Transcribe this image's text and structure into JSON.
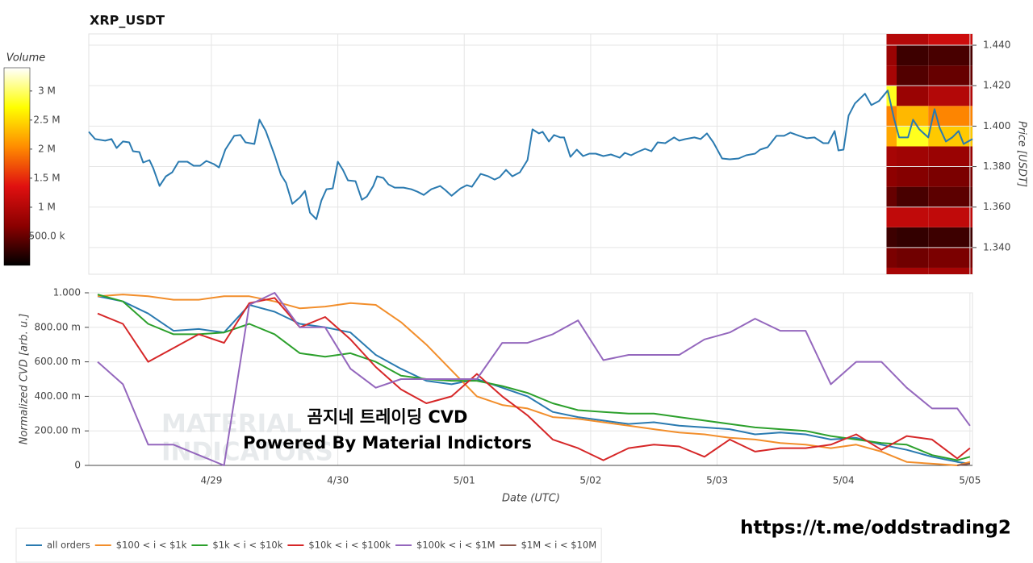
{
  "chart_data": [
    {
      "type": "line",
      "title": "XRP_USDT",
      "ylabel": "Price [USDT]",
      "color": "#2a7ab0",
      "xlim": [
        0.03,
        7.02
      ],
      "xticks": [
        1,
        2,
        3,
        4,
        5,
        6,
        7
      ],
      "ylim": [
        1.3268,
        1.4456
      ],
      "yticks": [
        {
          "value": 1.34,
          "label": "1.340"
        },
        {
          "value": 1.36,
          "label": "1.360"
        },
        {
          "value": 1.38,
          "label": "1.380"
        },
        {
          "value": 1.4,
          "label": "1.400"
        },
        {
          "value": 1.42,
          "label": "1.420"
        },
        {
          "value": 1.44,
          "label": "1.440"
        }
      ],
      "grid": true,
      "x": [
        0.03,
        0.08,
        0.16,
        0.21,
        0.25,
        0.3,
        0.35,
        0.38,
        0.43,
        0.46,
        0.51,
        0.54,
        0.59,
        0.64,
        0.69,
        0.74,
        0.81,
        0.86,
        0.91,
        0.96,
        1.02,
        1.06,
        1.11,
        1.18,
        1.23,
        1.27,
        1.34,
        1.38,
        1.43,
        1.5,
        1.55,
        1.59,
        1.64,
        1.7,
        1.74,
        1.78,
        1.83,
        1.87,
        1.91,
        1.96,
        2.0,
        2.04,
        2.08,
        2.14,
        2.19,
        2.23,
        2.28,
        2.31,
        2.36,
        2.4,
        2.45,
        2.52,
        2.58,
        2.63,
        2.68,
        2.74,
        2.81,
        2.85,
        2.9,
        2.97,
        3.02,
        3.06,
        3.13,
        3.19,
        3.24,
        3.28,
        3.33,
        3.38,
        3.44,
        3.5,
        3.54,
        3.59,
        3.62,
        3.67,
        3.71,
        3.76,
        3.79,
        3.84,
        3.89,
        3.94,
        3.99,
        4.04,
        4.1,
        4.16,
        4.23,
        4.27,
        4.32,
        4.37,
        4.43,
        4.48,
        4.53,
        4.59,
        4.66,
        4.7,
        4.75,
        4.82,
        4.87,
        4.92,
        4.97,
        5.04,
        5.1,
        5.17,
        5.23,
        5.3,
        5.34,
        5.4,
        5.47,
        5.53,
        5.58,
        5.65,
        5.71,
        5.77,
        5.84,
        5.88,
        5.93,
        5.96,
        6.0,
        6.04,
        6.09,
        6.17,
        6.22,
        6.28,
        6.35,
        6.4,
        6.44,
        6.51,
        6.55,
        6.6,
        6.67,
        6.72,
        6.76,
        6.81,
        6.86,
        6.91,
        6.95,
        7.02
      ],
      "values": [
        1.3972,
        1.3936,
        1.3928,
        1.3936,
        1.3892,
        1.3924,
        1.392,
        1.3876,
        1.3872,
        1.382,
        1.3832,
        1.3792,
        1.3704,
        1.3752,
        1.3772,
        1.3824,
        1.3824,
        1.3804,
        1.3804,
        1.3828,
        1.3812,
        1.3796,
        1.3884,
        1.3952,
        1.3956,
        1.392,
        1.3912,
        1.4032,
        1.3976,
        1.3856,
        1.376,
        1.372,
        1.3616,
        1.3648,
        1.368,
        1.3572,
        1.354,
        1.3632,
        1.3688,
        1.3692,
        1.3824,
        1.3784,
        1.3732,
        1.3728,
        1.3636,
        1.3652,
        1.3704,
        1.3752,
        1.3744,
        1.3712,
        1.3696,
        1.3696,
        1.3688,
        1.3676,
        1.366,
        1.3688,
        1.3704,
        1.3684,
        1.3656,
        1.3692,
        1.3708,
        1.37,
        1.3764,
        1.3752,
        1.3736,
        1.3748,
        1.3784,
        1.3752,
        1.3772,
        1.3832,
        1.3984,
        1.3964,
        1.3972,
        1.3924,
        1.3956,
        1.3944,
        1.3944,
        1.3848,
        1.3884,
        1.3852,
        1.3864,
        1.3864,
        1.3852,
        1.386,
        1.3844,
        1.3868,
        1.3856,
        1.3872,
        1.3888,
        1.3876,
        1.392,
        1.3916,
        1.3944,
        1.3928,
        1.3936,
        1.3944,
        1.3936,
        1.3964,
        1.392,
        1.384,
        1.3836,
        1.384,
        1.3856,
        1.3864,
        1.3884,
        1.3896,
        1.3952,
        1.3952,
        1.3968,
        1.3952,
        1.394,
        1.3944,
        1.3916,
        1.3916,
        1.3976,
        1.388,
        1.3884,
        1.4052,
        1.4112,
        1.416,
        1.4104,
        1.4124,
        1.4176,
        1.4036,
        1.3944,
        1.3944,
        1.4032,
        1.3984,
        1.3944,
        1.4084,
        1.3992,
        1.3924,
        1.3944,
        1.3976,
        1.3912,
        1.3936
      ],
      "heatmap": {
        "x_edges": [
          6.34,
          6.42,
          6.67,
          7.02
        ],
        "y_edges": [
          1.3268,
          1.33,
          1.34,
          1.35,
          1.36,
          1.37,
          1.38,
          1.39,
          1.4,
          1.41,
          1.42,
          1.43,
          1.44,
          1.4456
        ],
        "values": [
          [
            900000,
            900000,
            900000
          ],
          [
            600000,
            550000,
            600000
          ],
          [
            300000,
            250000,
            300000
          ],
          [
            1100000,
            1100000,
            1100000
          ],
          [
            500000,
            350000,
            450000
          ],
          [
            700000,
            650000,
            600000
          ],
          [
            900000,
            850000,
            800000
          ],
          [
            2200000,
            2800000,
            2400000
          ],
          [
            2000000,
            2300000,
            2000000
          ],
          [
            2800000,
            800000,
            1000000
          ],
          [
            900000,
            400000,
            500000
          ],
          [
            800000,
            300000,
            350000
          ],
          [
            1000000,
            1000000,
            1200000
          ]
        ],
        "colorscale": [
          "#000000",
          "#8b0000",
          "#e01010",
          "#ff8c00",
          "#ffff00",
          "#ffffff"
        ]
      },
      "colorbar": {
        "title": "Volume",
        "clim": [
          0,
          3400000
        ],
        "ticks": [
          {
            "value": 500000,
            "label": "500.0 k"
          },
          {
            "value": 1000000,
            "label": "1 M"
          },
          {
            "value": 1500000,
            "label": "1.5 M"
          },
          {
            "value": 2000000,
            "label": "2 M"
          },
          {
            "value": 2500000,
            "label": "2.5 M"
          },
          {
            "value": 3000000,
            "label": "3 M"
          }
        ]
      }
    },
    {
      "type": "line",
      "xlabel": "Date (UTC)",
      "ylabel": "Normalized CVD [arb. u.]",
      "xlim": [
        0.03,
        7.02
      ],
      "xticks": [
        {
          "value": 1,
          "label": "4/29"
        },
        {
          "value": 2,
          "label": "4/30"
        },
        {
          "value": 3,
          "label": "5/01"
        },
        {
          "value": 4,
          "label": "5/02"
        },
        {
          "value": 5,
          "label": "5/03"
        },
        {
          "value": 6,
          "label": "5/04"
        },
        {
          "value": 7,
          "label": "5/05"
        }
      ],
      "ylim": [
        0,
        1
      ],
      "yticks": [
        0,
        {
          "value": 0.2,
          "label": "200.00 m"
        },
        {
          "value": 0.4,
          "label": "400.00 m"
        },
        {
          "value": 0.6,
          "label": "600.00 m"
        },
        {
          "value": 0.8,
          "label": "800.00 m"
        },
        {
          "value": 1,
          "label": "1.000"
        }
      ],
      "grid": true,
      "legend": "bottom",
      "x": [
        0.1,
        0.3,
        0.5,
        0.7,
        0.9,
        1.1,
        1.3,
        1.5,
        1.7,
        1.9,
        2.1,
        2.3,
        2.5,
        2.7,
        2.9,
        3.1,
        3.3,
        3.5,
        3.7,
        3.9,
        4.1,
        4.3,
        4.5,
        4.7,
        4.9,
        5.1,
        5.3,
        5.5,
        5.7,
        5.9,
        6.1,
        6.3,
        6.5,
        6.7,
        6.9,
        7.0
      ],
      "series": [
        {
          "name": "all orders",
          "color": "#2a7ab0",
          "values": [
            0.98,
            0.95,
            0.88,
            0.78,
            0.79,
            0.77,
            0.93,
            0.89,
            0.82,
            0.8,
            0.77,
            0.64,
            0.56,
            0.49,
            0.47,
            0.5,
            0.45,
            0.4,
            0.31,
            0.28,
            0.26,
            0.24,
            0.25,
            0.23,
            0.22,
            0.21,
            0.18,
            0.19,
            0.18,
            0.15,
            0.16,
            0.12,
            0.09,
            0.05,
            0.02,
            0.01
          ]
        },
        {
          "name": "$100 < i < $1k",
          "color": "#f28e2b",
          "values": [
            0.98,
            0.99,
            0.98,
            0.96,
            0.96,
            0.98,
            0.98,
            0.95,
            0.91,
            0.92,
            0.94,
            0.93,
            0.83,
            0.7,
            0.55,
            0.4,
            0.35,
            0.33,
            0.28,
            0.27,
            0.25,
            0.23,
            0.21,
            0.19,
            0.18,
            0.16,
            0.15,
            0.13,
            0.12,
            0.1,
            0.12,
            0.08,
            0.02,
            0.01,
            0,
            0.02
          ]
        },
        {
          "name": "$1k < i < $10k",
          "color": "#2ca02c",
          "values": [
            0.99,
            0.95,
            0.82,
            0.76,
            0.76,
            0.77,
            0.82,
            0.76,
            0.65,
            0.63,
            0.65,
            0.6,
            0.52,
            0.5,
            0.49,
            0.49,
            0.46,
            0.42,
            0.36,
            0.32,
            0.31,
            0.3,
            0.3,
            0.28,
            0.26,
            0.24,
            0.22,
            0.21,
            0.2,
            0.17,
            0.15,
            0.13,
            0.12,
            0.06,
            0.03,
            0.05
          ]
        },
        {
          "name": "$10k < i < $100k",
          "color": "#d62728",
          "values": [
            0.88,
            0.82,
            0.6,
            0.68,
            0.76,
            0.71,
            0.94,
            0.97,
            0.8,
            0.86,
            0.73,
            0.57,
            0.44,
            0.36,
            0.4,
            0.53,
            0.4,
            0.29,
            0.15,
            0.1,
            0.03,
            0.1,
            0.12,
            0.11,
            0.05,
            0.15,
            0.08,
            0.1,
            0.1,
            0.12,
            0.18,
            0.09,
            0.17,
            0.15,
            0.04,
            0.1
          ]
        },
        {
          "name": "$100k < i < $1M",
          "color": "#9467bd",
          "values": [
            0.6,
            0.47,
            0.12,
            0.12,
            0.06,
            0,
            0.93,
            1.0,
            0.8,
            0.8,
            0.56,
            0.45,
            0.5,
            0.5,
            0.5,
            0.5,
            0.71,
            0.71,
            0.76,
            0.84,
            0.61,
            0.64,
            0.64,
            0.64,
            0.73,
            0.77,
            0.85,
            0.78,
            0.78,
            0.47,
            0.6,
            0.6,
            0.45,
            0.33,
            0.33,
            0.23
          ]
        },
        {
          "name": "$1M < i < $10M",
          "color": "#8c564b",
          "values": [
            null,
            null,
            null,
            null,
            null,
            null,
            null,
            null,
            null,
            null,
            null,
            null,
            null,
            null,
            null,
            null,
            null,
            null,
            null,
            null,
            null,
            null,
            null,
            null,
            null,
            null,
            null,
            null,
            null,
            null,
            null,
            null,
            null,
            null,
            0,
            0.01
          ]
        }
      ],
      "annotations": [
        "곰지네 트레이딩 CVD",
        "Powered By Material Indictors"
      ],
      "watermark": [
        "MATERIAL",
        "INDICATORS"
      ]
    }
  ],
  "footer": {
    "url": "https://t.me/oddstrading2"
  }
}
